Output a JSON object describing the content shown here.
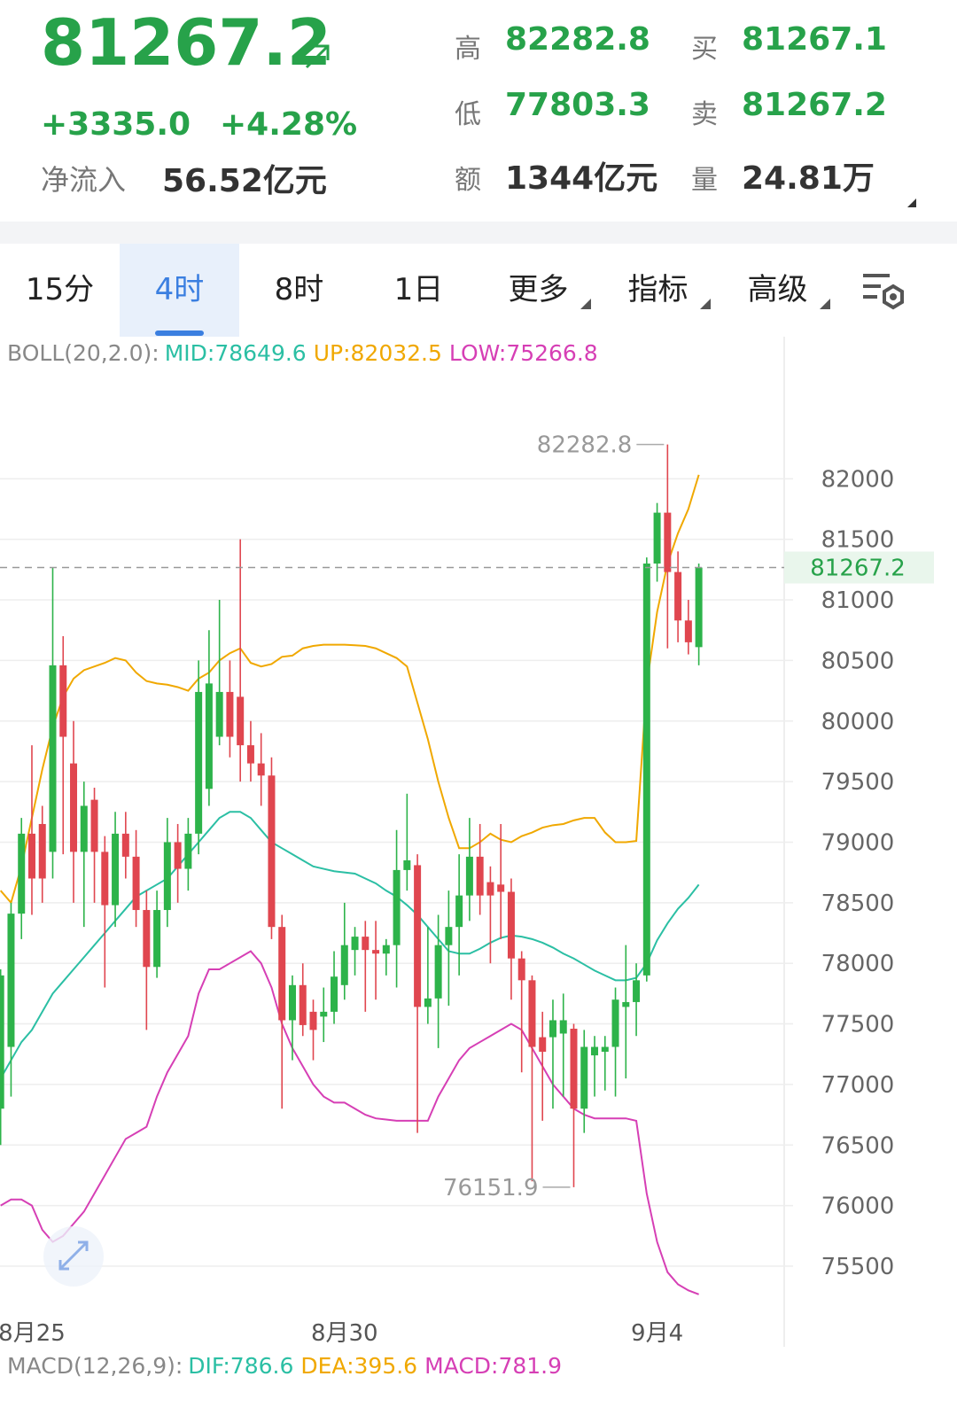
{
  "header": {
    "price": "81267.2",
    "change": "+3335.0",
    "change_pct": "+4.28%",
    "netflow_label": "净流入",
    "netflow_value": "56.52亿元",
    "stats": [
      {
        "label": "高",
        "value": "82282.8"
      },
      {
        "label": "买",
        "value": "81267.1"
      },
      {
        "label": "低",
        "value": "77803.3"
      },
      {
        "label": "卖",
        "value": "81267.2"
      },
      {
        "label": "额",
        "value": "1344亿元"
      },
      {
        "label": "量",
        "value": "24.81万"
      }
    ]
  },
  "tabs": [
    "15分",
    "4时",
    "8时",
    "1日",
    "更多",
    "指标",
    "高级"
  ],
  "active_tab": 1,
  "boll_label": "BOLL(20,2.0):",
  "macd": {
    "label": "MACD(12,26,9):",
    "items": [
      {
        "name": "DIF:",
        "value": 786.6,
        "color": "#2bbfa4"
      },
      {
        "name": "DEA:",
        "value": 395.6,
        "color": "#f0a800"
      },
      {
        "name": "MACD:",
        "value": 781.9,
        "color": "#d63fb5"
      }
    ]
  },
  "chart_data": {
    "type": "candlestick",
    "categories": [
      null,
      null,
      null,
      "8月25",
      null,
      null,
      null,
      null,
      null,
      null,
      null,
      null,
      null,
      null,
      null,
      null,
      null,
      null,
      null,
      null,
      null,
      null,
      null,
      null,
      null,
      null,
      null,
      null,
      null,
      null,
      null,
      null,
      null,
      "8月30",
      null,
      null,
      null,
      null,
      null,
      null,
      null,
      null,
      null,
      null,
      null,
      null,
      null,
      null,
      null,
      null,
      null,
      null,
      null,
      null,
      null,
      null,
      null,
      null,
      null,
      null,
      null,
      null,
      null,
      "9月4",
      null,
      null,
      null,
      null
    ],
    "open": [
      76800,
      77310,
      78410,
      79070,
      79150,
      78920,
      80460,
      79650,
      78920,
      79350,
      78920,
      78480,
      79070,
      78880,
      78440,
      77970,
      78440,
      79000,
      78780,
      79070,
      79440,
      79870,
      80240,
      80200,
      79800,
      79650,
      79550,
      78300,
      77530,
      77820,
      77600,
      77560,
      77600,
      77820,
      78110,
      78220,
      78110,
      78080,
      78150,
      78770,
      78810,
      77640,
      77710,
      78150,
      78300,
      78560,
      78880,
      78670,
      78650,
      78590,
      78040,
      77860,
      77390,
      77390,
      77420,
      77460,
      76800,
      77240,
      77270,
      77310,
      77640,
      77680,
      77900,
      81300,
      81720,
      81230,
      80830,
      80610
    ],
    "high": [
      77950,
      78500,
      79200,
      79800,
      79300,
      81270,
      80700,
      80000,
      79500,
      79450,
      79050,
      79250,
      79250,
      79100,
      78600,
      78600,
      79200,
      79150,
      79200,
      80500,
      80750,
      81000,
      80500,
      81500,
      80000,
      79900,
      79700,
      78400,
      77900,
      78000,
      77700,
      77800,
      78100,
      78500,
      78300,
      78350,
      78350,
      78200,
      79100,
      79400,
      78900,
      78300,
      78400,
      78600,
      78900,
      79200,
      79150,
      78800,
      79150,
      78700,
      78100,
      77900,
      77600,
      77700,
      77750,
      77500,
      77450,
      77400,
      77400,
      77800,
      78150,
      78000,
      81350,
      81800,
      82282.8,
      81400,
      81000,
      81300
    ],
    "low": [
      76500,
      76900,
      78200,
      78400,
      78500,
      78700,
      78900,
      78500,
      78300,
      78500,
      77800,
      78300,
      78700,
      78300,
      77450,
      77880,
      78300,
      78500,
      78600,
      78900,
      79300,
      79800,
      79700,
      79500,
      79500,
      79300,
      78200,
      76800,
      77200,
      77400,
      77200,
      77350,
      77500,
      77700,
      77900,
      77600,
      77700,
      77900,
      77800,
      78600,
      76600,
      77500,
      77300,
      77650,
      77900,
      78350,
      78400,
      78000,
      78200,
      77700,
      77100,
      76200,
      76700,
      76800,
      76900,
      76151.9,
      76600,
      76900,
      76950,
      76900,
      77050,
      77400,
      77850,
      81150,
      80600,
      80650,
      80550,
      80460
    ],
    "close": [
      77900,
      78410,
      79070,
      78700,
      78700,
      80460,
      79870,
      78920,
      79300,
      78920,
      78480,
      79070,
      78880,
      78440,
      77970,
      78440,
      79000,
      78780,
      79070,
      80240,
      80310,
      80240,
      79870,
      79800,
      79650,
      79550,
      78300,
      77530,
      77820,
      77490,
      77450,
      77600,
      77890,
      78150,
      78220,
      78110,
      78080,
      78150,
      78770,
      78850,
      77640,
      77710,
      78150,
      78300,
      78560,
      78880,
      78560,
      78560,
      78590,
      78040,
      77860,
      77310,
      77270,
      77530,
      77530,
      76800,
      77310,
      77310,
      77310,
      77700,
      77680,
      77860,
      81300,
      81720,
      81230,
      80830,
      80650,
      81267.2
    ],
    "series": [
      {
        "name": "MID:",
        "color": "#2bbfa4",
        "values": [
          77050,
          77200,
          77350,
          77450,
          77600,
          77750,
          77850,
          77950,
          78050,
          78150,
          78250,
          78350,
          78450,
          78550,
          78600,
          78650,
          78700,
          78800,
          78900,
          79000,
          79100,
          79200,
          79250,
          79250,
          79200,
          79100,
          79000,
          78950,
          78900,
          78850,
          78800,
          78780,
          78760,
          78750,
          78740,
          78700,
          78660,
          78600,
          78550,
          78480,
          78400,
          78300,
          78200,
          78100,
          78080,
          78080,
          78120,
          78170,
          78210,
          78230,
          78220,
          78200,
          78170,
          78130,
          78080,
          78040,
          77990,
          77940,
          77900,
          77860,
          77860,
          77880,
          78000,
          78190,
          78330,
          78450,
          78540,
          78649.6
        ]
      },
      {
        "name": "UP:",
        "color": "#f0a800",
        "values": [
          78600,
          78500,
          78800,
          79200,
          79600,
          79950,
          80200,
          80350,
          80420,
          80450,
          80480,
          80520,
          80500,
          80400,
          80330,
          80310,
          80300,
          80280,
          80250,
          80350,
          80400,
          80500,
          80560,
          80600,
          80480,
          80450,
          80470,
          80530,
          80540,
          80600,
          80620,
          80630,
          80630,
          80630,
          80625,
          80620,
          80600,
          80560,
          80520,
          80450,
          80150,
          79850,
          79500,
          79200,
          78950,
          78950,
          79000,
          79070,
          79020,
          79000,
          79050,
          79080,
          79120,
          79140,
          79150,
          79180,
          79200,
          79200,
          79080,
          79000,
          79000,
          79010,
          80300,
          80900,
          81300,
          81550,
          81750,
          82032.5
        ]
      },
      {
        "name": "LOW:",
        "color": "#d63fb5",
        "values": [
          76000,
          76050,
          76050,
          76000,
          75800,
          75700,
          75750,
          75850,
          75950,
          76100,
          76250,
          76400,
          76550,
          76600,
          76650,
          76900,
          77100,
          77250,
          77400,
          77750,
          77950,
          77950,
          78000,
          78050,
          78100,
          78000,
          77800,
          77500,
          77300,
          77150,
          77000,
          76900,
          76850,
          76850,
          76800,
          76750,
          76720,
          76710,
          76700,
          76700,
          76700,
          76700,
          76900,
          77050,
          77200,
          77300,
          77350,
          77400,
          77450,
          77500,
          77450,
          77300,
          77150,
          77000,
          76900,
          76800,
          76750,
          76720,
          76720,
          76720,
          76720,
          76700,
          76100,
          75700,
          75450,
          75350,
          75300,
          75266.8
        ]
      }
    ],
    "up_color": "#2db34a",
    "down_color": "#e0464f",
    "ylim": [
      75200,
      82880
    ],
    "yticks": [
      75500,
      76000,
      76500,
      77000,
      77500,
      78000,
      78500,
      79000,
      79500,
      80000,
      80500,
      81000,
      81500,
      82000
    ],
    "grid": true
  }
}
